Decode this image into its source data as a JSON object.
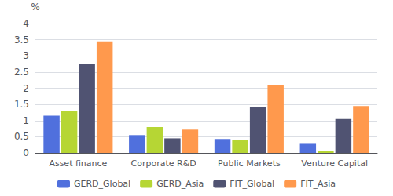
{
  "chart_data": {
    "type": "bar",
    "categories": [
      "Asset finance",
      "Corporate R&D",
      "Public Markets",
      "Venture Capital"
    ],
    "series": [
      {
        "name": "GERD_Global",
        "values": [
          1.15,
          0.55,
          0.43,
          0.28
        ]
      },
      {
        "name": "GERD_Asia",
        "values": [
          1.3,
          0.8,
          0.4,
          0.05
        ]
      },
      {
        "name": "FIT_Global",
        "values": [
          2.75,
          0.45,
          1.42,
          1.05
        ]
      },
      {
        "name": "FIT_Asia",
        "values": [
          3.45,
          0.72,
          2.1,
          1.45
        ]
      }
    ],
    "ylabel": "%",
    "ylim": [
      0,
      4
    ],
    "yticks": [
      0,
      0.5,
      1,
      1.5,
      2,
      2.5,
      3,
      3.5,
      4
    ],
    "grid": true,
    "legend": "bottom"
  }
}
